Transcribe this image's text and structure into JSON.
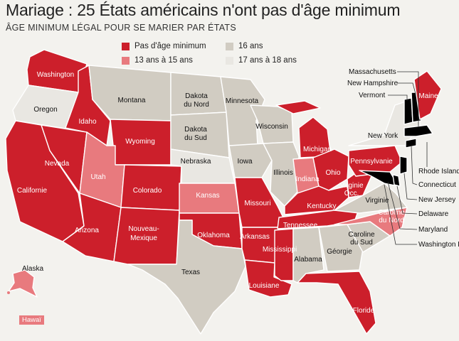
{
  "title": "Mariage : 25 États américains n'ont pas d'âge minimum",
  "subtitle": "ÂGE MINIMUM LÉGAL POUR SE MARIER  PAR ÉTATS",
  "colors": {
    "none": "#cc1f2b",
    "13_15": "#e87a7e",
    "16": "#d1ccc2",
    "17_18": "#e9e7e2",
    "background": "#f3f2ee"
  },
  "legend": [
    {
      "key": "none",
      "label": "Pas d'âge minimum"
    },
    {
      "key": "16",
      "label": "16 ans"
    },
    {
      "key": "13_15",
      "label": "13 ans à 15 ans"
    },
    {
      "key": "17_18",
      "label": "17 ans à 18 ans"
    }
  ],
  "states": {
    "washington": {
      "label": "Washington",
      "category": "none"
    },
    "oregon": {
      "label": "Oregon",
      "category": "17_18"
    },
    "california": {
      "label": "Californie",
      "category": "none"
    },
    "idaho": {
      "label": "Idaho",
      "category": "none"
    },
    "nevada": {
      "label": "Nevada",
      "category": "none"
    },
    "montana": {
      "label": "Montana",
      "category": "16"
    },
    "wyoming": {
      "label": "Wyoming",
      "category": "none"
    },
    "utah": {
      "label": "Utah",
      "category": "13_15"
    },
    "arizona": {
      "label": "Arizona",
      "category": "none"
    },
    "colorado": {
      "label": "Colorado",
      "category": "none"
    },
    "new_mexico": {
      "label": "Nouveau-Mexique",
      "category": "none"
    },
    "north_dakota": {
      "label": "Dakota du Nord",
      "category": "16"
    },
    "south_dakota": {
      "label": "Dakota du Sud",
      "category": "16"
    },
    "nebraska": {
      "label": "Nebraska",
      "category": "17_18"
    },
    "kansas": {
      "label": "Kansas",
      "category": "13_15"
    },
    "oklahoma": {
      "label": "Oklahoma",
      "category": "none"
    },
    "texas": {
      "label": "Texas",
      "category": "16"
    },
    "minnesota": {
      "label": "Minnesota",
      "category": "16"
    },
    "iowa": {
      "label": "Iowa",
      "category": "16"
    },
    "missouri": {
      "label": "Missouri",
      "category": "none"
    },
    "arkansas": {
      "label": "Arkansas",
      "category": "none"
    },
    "louisiana": {
      "label": "Louisiane",
      "category": "none"
    },
    "wisconsin": {
      "label": "Wisconsin",
      "category": "16"
    },
    "illinois": {
      "label": "Illinois",
      "category": "16"
    },
    "michigan": {
      "label": "Michigan",
      "category": "none"
    },
    "indiana": {
      "label": "Indiana",
      "category": "13_15"
    },
    "ohio": {
      "label": "Ohio",
      "category": "none"
    },
    "kentucky": {
      "label": "Kentucky",
      "category": "none"
    },
    "tennessee": {
      "label": "Tennessee",
      "category": "none"
    },
    "mississippi": {
      "label": "Mississippi",
      "category": "none"
    },
    "alabama": {
      "label": "Alabama",
      "category": "16"
    },
    "georgia": {
      "label": "Géorgie",
      "category": "16"
    },
    "florida": {
      "label": "Floride",
      "category": "none"
    },
    "south_carolina": {
      "label": "Caroline du Sud",
      "category": "16"
    },
    "north_carolina": {
      "label": "Caroline du Nord",
      "category": "13_15"
    },
    "virginia": {
      "label": "Virginie",
      "category": "16"
    },
    "west_virginia": {
      "label": "Virginie Occ.",
      "category": "none"
    },
    "pennsylvania": {
      "label": "Pennsylvanie",
      "category": "none"
    },
    "new_york": {
      "label": "New York",
      "category": "17_18"
    },
    "maine": {
      "label": "Maine",
      "category": "none"
    },
    "alaska": {
      "label": "Alaska",
      "category": "13_15"
    },
    "hawaii": {
      "label": "Hawaï",
      "category": "13_15"
    }
  },
  "callouts": {
    "massachusetts": "Massachusetts",
    "new_hampshire": "New Hampshire",
    "vermont": "Vermont",
    "rhode_island": "Rhode Island",
    "connecticut": "Connecticut",
    "new_jersey": "New Jersey",
    "delaware": "Delaware",
    "maryland": "Maryland",
    "washington_dc": "Washington DC"
  }
}
